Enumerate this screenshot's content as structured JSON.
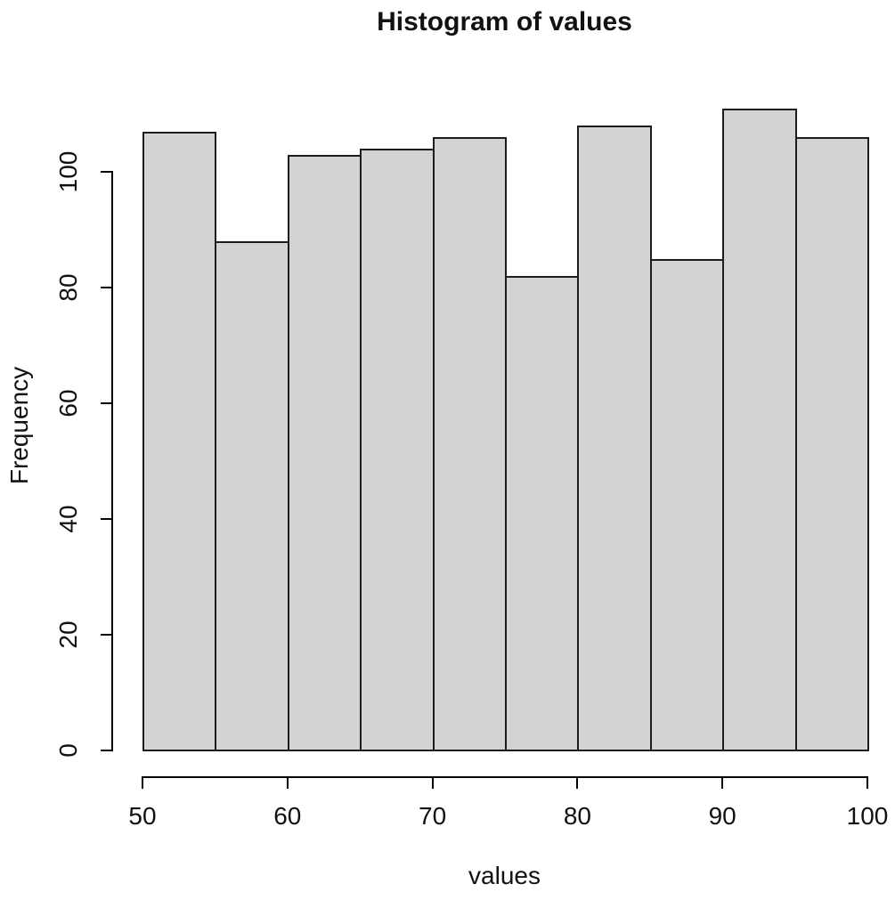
{
  "chart_data": {
    "type": "bar",
    "subtype": "histogram",
    "title": "Histogram of values",
    "xlabel": "values",
    "ylabel": "Frequency",
    "bin_edges": [
      50,
      55,
      60,
      65,
      70,
      75,
      80,
      85,
      90,
      95,
      100
    ],
    "counts": [
      107,
      88,
      103,
      104,
      106,
      82,
      108,
      85,
      111,
      106
    ],
    "x_ticks": [
      50,
      60,
      70,
      80,
      90,
      100
    ],
    "y_ticks": [
      0,
      20,
      40,
      60,
      80,
      100
    ],
    "xlim": [
      50,
      100
    ],
    "ylim": [
      0,
      111
    ],
    "grid": false,
    "legend": "none",
    "colors": {
      "bar_fill": "#d3d3d3",
      "bar_border": "#1c1c1c",
      "axis": "#000000",
      "text": "#111111",
      "background": "#ffffff"
    }
  }
}
